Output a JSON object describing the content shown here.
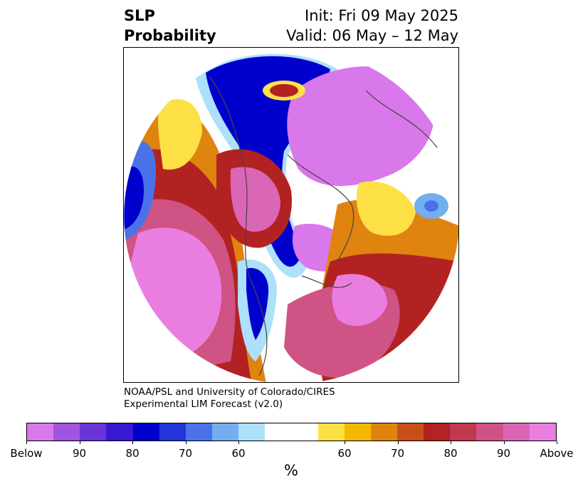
{
  "header": {
    "title_line1": "SLP",
    "title_line2": "Probability",
    "init_label": "Init: Fri 09 May 2025",
    "valid_label": "Valid: 06 May – 12 May"
  },
  "credit": {
    "line1": "NOAA/PSL and University of Colorado/CIRES",
    "line2": "Experimental LIM Forecast (v2.0)"
  },
  "colorbar": {
    "unit": "%",
    "colors": [
      "#d878ea",
      "#a055e0",
      "#6a35d8",
      "#3a18d0",
      "#0000cc",
      "#2235d8",
      "#4a72e8",
      "#72aef0",
      "#ade0fb",
      "#ffffff",
      "#ffffff",
      "#fde046",
      "#f4b800",
      "#e08410",
      "#c85018",
      "#b22222",
      "#c0394e",
      "#cf5384",
      "#db66b6",
      "#ea7ee0"
    ],
    "ticks": [
      "Below",
      "90",
      "80",
      "70",
      "60",
      "60",
      "70",
      "80",
      "90",
      "Above"
    ]
  },
  "map": {
    "colors": {
      "above_deep": "#ea7ee0",
      "above_high": "#cf5384",
      "above_mid": "#b22222",
      "above_low": "#e08410",
      "above_faint": "#fde046",
      "below_deep": "#d878ea",
      "below_high": "#0000cc",
      "below_mid": "#4a72e8",
      "below_faint": "#ade0fb",
      "coast": "#444444"
    }
  }
}
